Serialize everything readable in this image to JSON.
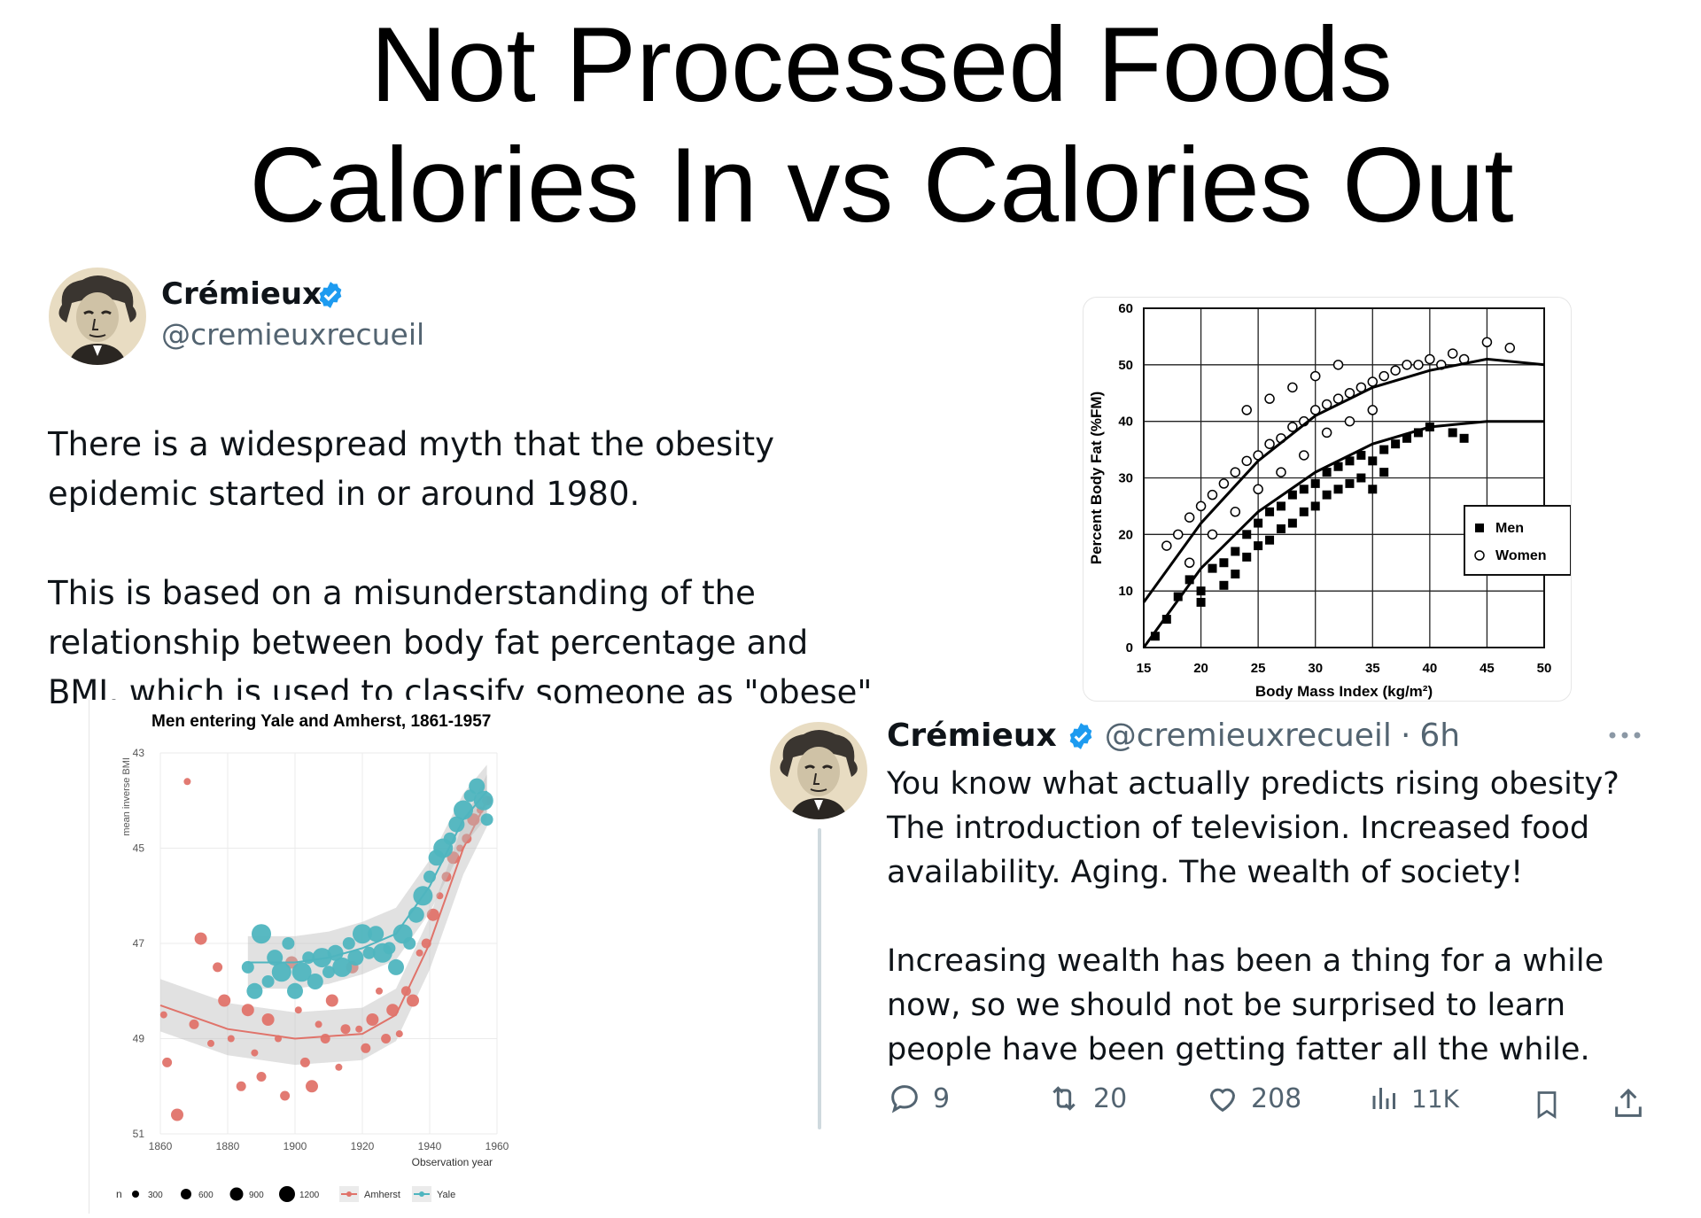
{
  "title": {
    "line1": "Not Processed Foods",
    "line2": "Calories In vs Calories Out"
  },
  "tweet1": {
    "name": "Crémieux",
    "handle": "@cremieuxrecueil",
    "para1_line1": "There is a widespread myth that the obesity",
    "para1_line2": "epidemic started in or around 1980.",
    "para2_line1": "This is based on a misunderstanding of the",
    "para2_line2": "relationship between body fat percentage and",
    "para2_line3": "BMI, which is used to classify someone as \"obese\""
  },
  "tweet2": {
    "name": "Crémieux",
    "handle": "@cremieuxrecueil",
    "sep": "·",
    "time": "6h",
    "more_icon": "more-dots-icon",
    "para1_line1": "You know what actually predicts rising obesity?",
    "para1_line2": "The introduction of television. Increased food",
    "para1_line3": "availability. Aging. The wealth of society!",
    "para2_line1": "Increasing wealth has been a thing for a while",
    "para2_line2": "now, so we should not be surprised to learn",
    "para2_line3": "people have been getting fatter all the while.",
    "stats": {
      "replies": "9",
      "reposts": "20",
      "likes": "208",
      "views": "11K"
    }
  },
  "colors": {
    "verified": "#1d9bf0",
    "amherst": "#e0736a",
    "yale": "#4fb5bf",
    "muted": "#536471"
  },
  "chart_data": [
    {
      "type": "scatter",
      "title": "",
      "xlabel": "Body Mass Index (kg/m²)",
      "ylabel": "Percent Body Fat (%FM)",
      "xlim": [
        15,
        50
      ],
      "ylim": [
        0,
        60
      ],
      "x_ticks": [
        "15",
        "20",
        "25",
        "30",
        "35",
        "40",
        "45",
        "50"
      ],
      "y_ticks": [
        "0",
        "10",
        "20",
        "30",
        "40",
        "50",
        "60"
      ],
      "grid": true,
      "legend": {
        "placement": "right",
        "entries": [
          "Men",
          "Women"
        ]
      },
      "series": [
        {
          "name": "Men",
          "marker": "filled-square",
          "points": [
            [
              16,
              2
            ],
            [
              17,
              5
            ],
            [
              18,
              9
            ],
            [
              19,
              12
            ],
            [
              20,
              10
            ],
            [
              21,
              14
            ],
            [
              22,
              15
            ],
            [
              23,
              17
            ],
            [
              24,
              20
            ],
            [
              25,
              22
            ],
            [
              26,
              24
            ],
            [
              27,
              25
            ],
            [
              28,
              27
            ],
            [
              29,
              28
            ],
            [
              30,
              29
            ],
            [
              31,
              31
            ],
            [
              32,
              32
            ],
            [
              33,
              33
            ],
            [
              34,
              34
            ],
            [
              35,
              33
            ],
            [
              36,
              35
            ],
            [
              37,
              36
            ],
            [
              38,
              37
            ],
            [
              39,
              38
            ],
            [
              40,
              39
            ],
            [
              42,
              38
            ],
            [
              43,
              37
            ],
            [
              20,
              8
            ],
            [
              22,
              11
            ],
            [
              24,
              16
            ],
            [
              26,
              19
            ],
            [
              28,
              22
            ],
            [
              30,
              25
            ],
            [
              32,
              28
            ],
            [
              34,
              30
            ],
            [
              36,
              31
            ],
            [
              23,
              13
            ],
            [
              25,
              18
            ],
            [
              27,
              21
            ],
            [
              29,
              24
            ],
            [
              31,
              27
            ],
            [
              33,
              29
            ],
            [
              35,
              28
            ]
          ],
          "curve": [
            [
              15,
              0
            ],
            [
              20,
              14
            ],
            [
              25,
              24
            ],
            [
              30,
              31
            ],
            [
              35,
              36
            ],
            [
              40,
              39
            ],
            [
              45,
              40
            ],
            [
              50,
              40
            ]
          ]
        },
        {
          "name": "Women",
          "marker": "open-circle",
          "points": [
            [
              17,
              18
            ],
            [
              18,
              20
            ],
            [
              19,
              23
            ],
            [
              20,
              25
            ],
            [
              21,
              27
            ],
            [
              22,
              29
            ],
            [
              23,
              31
            ],
            [
              24,
              33
            ],
            [
              25,
              34
            ],
            [
              26,
              36
            ],
            [
              27,
              37
            ],
            [
              28,
              39
            ],
            [
              29,
              40
            ],
            [
              30,
              42
            ],
            [
              31,
              43
            ],
            [
              32,
              44
            ],
            [
              33,
              45
            ],
            [
              34,
              46
            ],
            [
              35,
              47
            ],
            [
              36,
              48
            ],
            [
              37,
              49
            ],
            [
              38,
              50
            ],
            [
              39,
              50
            ],
            [
              40,
              51
            ],
            [
              41,
              50
            ],
            [
              42,
              52
            ],
            [
              43,
              51
            ],
            [
              45,
              54
            ],
            [
              47,
              53
            ],
            [
              19,
              15
            ],
            [
              21,
              20
            ],
            [
              23,
              24
            ],
            [
              25,
              28
            ],
            [
              27,
              31
            ],
            [
              29,
              34
            ],
            [
              31,
              38
            ],
            [
              33,
              40
            ],
            [
              35,
              42
            ],
            [
              24,
              42
            ],
            [
              26,
              44
            ],
            [
              28,
              46
            ],
            [
              30,
              48
            ],
            [
              32,
              50
            ]
          ],
          "curve": [
            [
              15,
              8
            ],
            [
              20,
              22
            ],
            [
              25,
              33
            ],
            [
              30,
              41
            ],
            [
              35,
              46
            ],
            [
              40,
              49
            ],
            [
              45,
              51
            ],
            [
              50,
              50
            ]
          ]
        }
      ]
    },
    {
      "type": "scatter",
      "title": "Men entering Yale and Amherst, 1861-1957",
      "xlabel": "Observation year",
      "ylabel": "mean inverse BMI",
      "xlim": [
        1860,
        1960
      ],
      "ylim": [
        51,
        43
      ],
      "x_ticks": [
        "1860",
        "1880",
        "1900",
        "1920",
        "1940",
        "1960"
      ],
      "y_ticks": [
        "43",
        "45",
        "47",
        "49",
        "51"
      ],
      "grid": true,
      "size_legend": {
        "label": "n",
        "values": [
          "300",
          "600",
          "900",
          "1200"
        ]
      },
      "legend": {
        "placement": "bottom",
        "entries": [
          "Amherst",
          "Yale"
        ]
      },
      "series": [
        {
          "name": "Amherst",
          "points": [
            [
              1861,
              48.5
            ],
            [
              1862,
              49.5
            ],
            [
              1865,
              50.6
            ],
            [
              1868,
              43.6
            ],
            [
              1870,
              48.7
            ],
            [
              1872,
              46.9
            ],
            [
              1875,
              49.1
            ],
            [
              1877,
              47.5
            ],
            [
              1879,
              48.2
            ],
            [
              1881,
              49.0
            ],
            [
              1884,
              50.0
            ],
            [
              1886,
              48.4
            ],
            [
              1888,
              49.3
            ],
            [
              1890,
              49.8
            ],
            [
              1892,
              48.6
            ],
            [
              1895,
              49.0
            ],
            [
              1897,
              50.2
            ],
            [
              1899,
              47.4
            ],
            [
              1901,
              48.4
            ],
            [
              1903,
              49.5
            ],
            [
              1905,
              50.0
            ],
            [
              1907,
              48.7
            ],
            [
              1909,
              49.0
            ],
            [
              1911,
              48.2
            ],
            [
              1913,
              49.6
            ],
            [
              1915,
              48.8
            ],
            [
              1917,
              47.5
            ],
            [
              1919,
              48.8
            ],
            [
              1921,
              49.2
            ],
            [
              1923,
              48.6
            ],
            [
              1925,
              48.0
            ],
            [
              1927,
              49.0
            ],
            [
              1929,
              48.4
            ],
            [
              1931,
              48.9
            ],
            [
              1933,
              48.0
            ],
            [
              1935,
              48.2
            ],
            [
              1937,
              47.2
            ],
            [
              1939,
              47.0
            ],
            [
              1941,
              46.4
            ],
            [
              1943,
              46.0
            ],
            [
              1945,
              45.6
            ],
            [
              1947,
              45.2
            ],
            [
              1949,
              45.0
            ],
            [
              1951,
              44.8
            ],
            [
              1953,
              44.4
            ],
            [
              1955,
              44.2
            ],
            [
              1957,
              44.0
            ]
          ],
          "trend": [
            [
              1860,
              48.3
            ],
            [
              1880,
              48.8
            ],
            [
              1900,
              49.0
            ],
            [
              1920,
              48.9
            ],
            [
              1930,
              48.5
            ],
            [
              1940,
              47.0
            ],
            [
              1950,
              45.0
            ],
            [
              1957,
              44.0
            ]
          ]
        },
        {
          "name": "Yale",
          "points": [
            [
              1886,
              47.5
            ],
            [
              1888,
              48.0
            ],
            [
              1890,
              46.8
            ],
            [
              1892,
              47.8
            ],
            [
              1894,
              47.3
            ],
            [
              1896,
              47.6
            ],
            [
              1898,
              47.0
            ],
            [
              1900,
              48.0
            ],
            [
              1902,
              47.6
            ],
            [
              1904,
              47.3
            ],
            [
              1906,
              47.8
            ],
            [
              1908,
              47.3
            ],
            [
              1910,
              47.6
            ],
            [
              1912,
              47.2
            ],
            [
              1914,
              47.5
            ],
            [
              1916,
              47.0
            ],
            [
              1918,
              47.3
            ],
            [
              1920,
              46.8
            ],
            [
              1922,
              47.2
            ],
            [
              1924,
              46.8
            ],
            [
              1926,
              47.2
            ],
            [
              1928,
              47.1
            ],
            [
              1930,
              47.5
            ],
            [
              1932,
              46.8
            ],
            [
              1934,
              47.0
            ],
            [
              1936,
              46.4
            ],
            [
              1938,
              46.0
            ],
            [
              1940,
              45.6
            ],
            [
              1942,
              45.2
            ],
            [
              1944,
              45.0
            ],
            [
              1946,
              44.8
            ],
            [
              1948,
              44.5
            ],
            [
              1950,
              44.2
            ],
            [
              1952,
              43.9
            ],
            [
              1954,
              43.7
            ],
            [
              1956,
              44.0
            ],
            [
              1957,
              44.4
            ]
          ],
          "trend": [
            [
              1886,
              47.4
            ],
            [
              1900,
              47.4
            ],
            [
              1910,
              47.3
            ],
            [
              1920,
              47.1
            ],
            [
              1930,
              46.8
            ],
            [
              1940,
              45.8
            ],
            [
              1950,
              44.4
            ],
            [
              1957,
              43.8
            ]
          ]
        }
      ]
    }
  ]
}
